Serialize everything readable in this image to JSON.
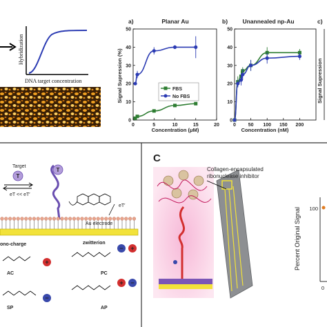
{
  "panel_top_left": {
    "x_label": "DNA target concentration",
    "y_label": "Hybridization"
  },
  "chart_data": [
    {
      "type": "line",
      "panel": "a)",
      "title": "Planar Au",
      "xlabel": "Concentration (μM)",
      "ylabel": "Signal Supression (%)",
      "xlim": [
        0,
        20
      ],
      "ylim": [
        0,
        50
      ],
      "xticks": [
        0,
        5,
        10,
        15,
        20
      ],
      "yticks": [
        0,
        10,
        20,
        30,
        40,
        50
      ],
      "legend": "right",
      "series": [
        {
          "name": "FBS",
          "color": "#2e7d32",
          "marker": "square",
          "x": [
            0.5,
            1,
            5,
            10,
            15
          ],
          "y": [
            1,
            2,
            5,
            8,
            9
          ]
        },
        {
          "name": "No FBS",
          "color": "#2b3bb3",
          "marker": "circle",
          "x": [
            0.5,
            1,
            5,
            10,
            15
          ],
          "y": [
            20,
            25,
            38,
            40,
            40
          ],
          "err": [
            0,
            2,
            2,
            1,
            6
          ]
        }
      ]
    },
    {
      "type": "line",
      "panel": "b)",
      "title": "Unannealed np-Au",
      "xlabel": "Concentration (nM)",
      "ylabel": "",
      "xlim": [
        0,
        250
      ],
      "ylim": [
        0,
        50
      ],
      "xticks": [
        0,
        50,
        100,
        150,
        200
      ],
      "yticks": [
        0,
        10,
        20,
        30,
        40,
        50
      ],
      "legend": "",
      "series": [
        {
          "name": "",
          "color": "#2e7d32",
          "marker": "square",
          "x": [
            0,
            10,
            20,
            25,
            50,
            100,
            200
          ],
          "y": [
            0,
            21,
            24,
            27,
            30,
            37,
            37
          ],
          "err": [
            0,
            3,
            3,
            2,
            3,
            3,
            2
          ]
        },
        {
          "name": "",
          "color": "#2b3bb3",
          "marker": "circle",
          "x": [
            0,
            10,
            20,
            25,
            50,
            100,
            200
          ],
          "y": [
            0,
            20,
            22,
            25,
            30,
            34,
            35
          ],
          "err": [
            0,
            2,
            3,
            3,
            3,
            3,
            2
          ]
        }
      ]
    }
  ],
  "panel_top_right": {
    "label": "c)",
    "ylabel": "Signal Supression"
  },
  "panel_bottom_left": {
    "target_label": "Target",
    "t_letter": "T",
    "et_label": "eT << eT′",
    "et_prime": "eT′",
    "electrode": "Au electrode",
    "mono_charge": "ono-charge",
    "zwitterion": "zwitterion",
    "molecules": [
      "AC",
      "PC",
      "SP",
      "AP"
    ],
    "plus": "+",
    "minus": "−"
  },
  "panel_bottom_right": {
    "letter": "C",
    "caption_line1": "Collagen-encapsulated",
    "caption_line2": "ribonuclease inhibitor",
    "ylabel": "Percent Original Signal",
    "tick_100": "100",
    "tick_0": "0"
  },
  "colors": {
    "fbs": "#2e7d32",
    "no_fbs": "#2b3bb3",
    "electrode": "#f2e23a",
    "dna_red": "#d32f2f",
    "divider": "#333333"
  }
}
